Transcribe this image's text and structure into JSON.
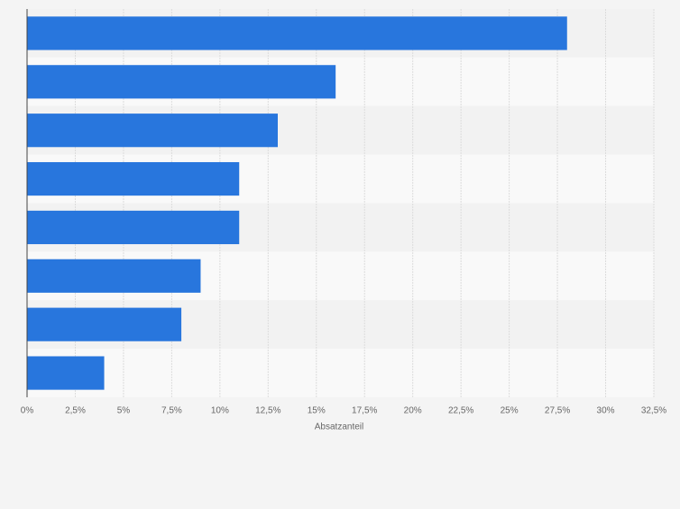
{
  "chart_data": {
    "type": "bar",
    "orientation": "horizontal",
    "categories": [
      null,
      null,
      null,
      null,
      null,
      null,
      null,
      null
    ],
    "values": [
      28,
      16,
      13,
      11,
      11,
      9,
      8,
      4
    ],
    "color": "#2876dd",
    "x_label": "Absatzanteil",
    "xlim": [
      0,
      32.5
    ],
    "xticks": [
      {
        "value": 0,
        "label": "0%"
      },
      {
        "value": 2.5,
        "label": "2,5%"
      },
      {
        "value": 5,
        "label": "5%"
      },
      {
        "value": 7.5,
        "label": "7,5%"
      },
      {
        "value": 10,
        "label": "10%"
      },
      {
        "value": 12.5,
        "label": "12,5%"
      },
      {
        "value": 15,
        "label": "15%"
      },
      {
        "value": 17.5,
        "label": "17,5%"
      },
      {
        "value": 20,
        "label": "20%"
      },
      {
        "value": 22.5,
        "label": "22,5%"
      },
      {
        "value": 25,
        "label": "25%"
      },
      {
        "value": 27.5,
        "label": "27,5%"
      },
      {
        "value": 30,
        "label": "30%"
      },
      {
        "value": 32.5,
        "label": "32,5%"
      }
    ],
    "grid": true
  }
}
